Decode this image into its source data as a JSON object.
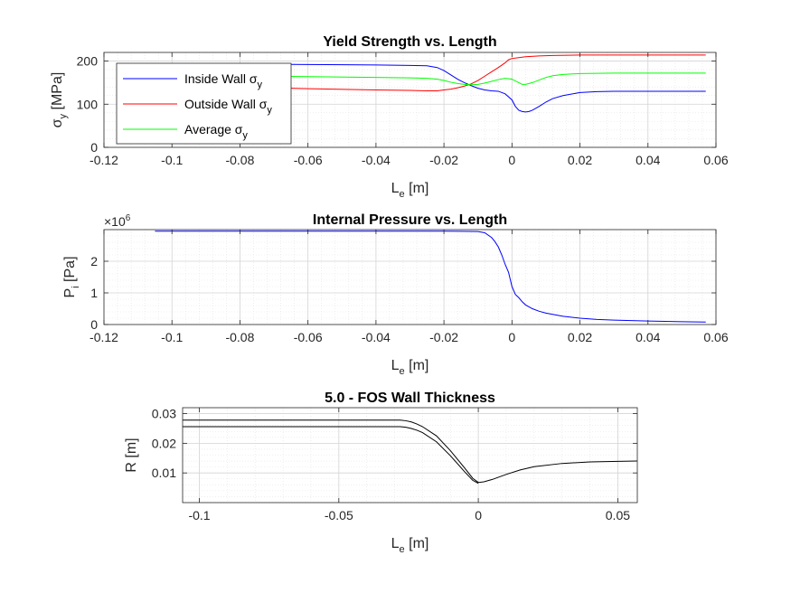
{
  "chart_data": [
    {
      "type": "line",
      "title": "Yield Strength vs. Length",
      "xlabel": {
        "base": "L",
        "sub": "e",
        "rest": " [m]"
      },
      "ylabel": {
        "pre": "σ",
        "sub": "y",
        "rest": " [MPa]"
      },
      "xlim": [
        -0.12,
        0.06
      ],
      "ylim": [
        0,
        220
      ],
      "xticks": [
        -0.12,
        -0.1,
        -0.08,
        -0.06,
        -0.04,
        -0.02,
        0,
        0.02,
        0.04,
        0.06
      ],
      "xtick_labels": [
        "-0.12",
        "-0.1",
        "-0.08",
        "-0.06",
        "-0.04",
        "-0.02",
        "0",
        "0.02",
        "0.04",
        "0.06"
      ],
      "yticks": [
        0,
        100,
        200
      ],
      "ytick_labels": [
        "0",
        "100",
        "200"
      ],
      "grid": true,
      "minor_grid": true,
      "legend": "top-left",
      "series": [
        {
          "name": "Inside Wall σy",
          "legend_text": "Inside Wall ",
          "legend_sym": "σ",
          "legend_sub": "y",
          "color": "#0000ff",
          "x": [
            -0.105,
            -0.08,
            -0.06,
            -0.04,
            -0.03,
            -0.025,
            -0.022,
            -0.02,
            -0.018,
            -0.016,
            -0.014,
            -0.012,
            -0.01,
            -0.008,
            -0.006,
            -0.004,
            -0.002,
            0,
            0.001,
            0.002,
            0.003,
            0.004,
            0.005,
            0.006,
            0.008,
            0.01,
            0.012,
            0.015,
            0.02,
            0.025,
            0.03,
            0.04,
            0.05,
            0.057
          ],
          "y": [
            193,
            193,
            192,
            191,
            190,
            189,
            185,
            178,
            168,
            158,
            150,
            143,
            137,
            133,
            131,
            130,
            124,
            110,
            95,
            86,
            83,
            82,
            83,
            86,
            95,
            105,
            113,
            120,
            127,
            129,
            130,
            130,
            130,
            130
          ]
        },
        {
          "name": "Outside Wall σy",
          "legend_text": "Outside Wall ",
          "legend_sym": "σ",
          "legend_sub": "y",
          "color": "#ff0000",
          "x": [
            -0.105,
            -0.08,
            -0.06,
            -0.04,
            -0.03,
            -0.025,
            -0.022,
            -0.02,
            -0.018,
            -0.016,
            -0.014,
            -0.012,
            -0.01,
            -0.008,
            -0.006,
            -0.004,
            -0.002,
            -0.001,
            0,
            0.002,
            0.004,
            0.008,
            0.012,
            0.02,
            0.03,
            0.04,
            0.05,
            0.057
          ],
          "y": [
            143,
            140,
            136,
            133,
            132,
            131,
            131,
            133,
            135,
            138,
            142,
            147,
            155,
            165,
            175,
            185,
            196,
            203,
            206,
            208,
            210,
            212,
            213,
            214,
            214,
            214,
            214,
            214
          ]
        },
        {
          "name": "Average σy",
          "legend_text": "Average ",
          "legend_sym": "σ",
          "legend_sub": "y",
          "color": "#00ff00",
          "x": [
            -0.105,
            -0.08,
            -0.06,
            -0.04,
            -0.03,
            -0.025,
            -0.022,
            -0.02,
            -0.018,
            -0.016,
            -0.014,
            -0.012,
            -0.01,
            -0.008,
            -0.006,
            -0.004,
            -0.002,
            0,
            0.002,
            0.003,
            0.004,
            0.006,
            0.008,
            0.01,
            0.012,
            0.015,
            0.02,
            0.03,
            0.04,
            0.05,
            0.057
          ],
          "y": [
            168,
            166,
            164,
            162,
            161,
            160,
            158,
            155,
            151,
            148,
            146,
            145,
            146,
            149,
            153,
            157,
            160,
            158,
            150,
            146,
            146,
            150,
            156,
            162,
            166,
            169,
            171,
            172,
            172,
            172,
            172
          ]
        }
      ]
    },
    {
      "type": "line",
      "title": "Internal Pressure vs. Length",
      "xlabel": {
        "base": "L",
        "sub": "e",
        "rest": " [m]"
      },
      "ylabel": {
        "pre": "P",
        "sub": "i",
        "rest": " [Pa]"
      },
      "exponent": {
        "base": "×10",
        "sup": "6"
      },
      "xlim": [
        -0.12,
        0.06
      ],
      "ylim": [
        0,
        3000000
      ],
      "xticks": [
        -0.12,
        -0.1,
        -0.08,
        -0.06,
        -0.04,
        -0.02,
        0,
        0.02,
        0.04,
        0.06
      ],
      "xtick_labels": [
        "-0.12",
        "-0.1",
        "-0.08",
        "-0.06",
        "-0.04",
        "-0.02",
        "0",
        "0.02",
        "0.04",
        "0.06"
      ],
      "yticks": [
        0,
        1000000,
        2000000
      ],
      "ytick_labels": [
        "0",
        "1",
        "2"
      ],
      "grid": true,
      "minor_grid": true,
      "series": [
        {
          "color": "#0000ff",
          "x": [
            -0.105,
            -0.08,
            -0.06,
            -0.04,
            -0.02,
            -0.01,
            -0.008,
            -0.006,
            -0.005,
            -0.004,
            -0.003,
            -0.002,
            -0.001,
            0,
            0.001,
            0.002,
            0.003,
            0.004,
            0.006,
            0.008,
            0.01,
            0.015,
            0.02,
            0.025,
            0.03,
            0.04,
            0.05,
            0.057
          ],
          "y": [
            2950000,
            2950000,
            2950000,
            2950000,
            2950000,
            2940000,
            2900000,
            2750000,
            2620000,
            2450000,
            2200000,
            1900000,
            1650000,
            1200000,
            950000,
            850000,
            720000,
            620000,
            500000,
            420000,
            360000,
            260000,
            200000,
            160000,
            140000,
            110000,
            90000,
            80000
          ]
        }
      ]
    },
    {
      "type": "line",
      "title": "5.0 - FOS Wall Thickness",
      "xlabel": {
        "base": "L",
        "sub": "e",
        "rest": " [m]"
      },
      "ylabel": {
        "pre": "R",
        "sub": "",
        "rest": " [m]"
      },
      "xlim": [
        -0.106,
        0.057
      ],
      "ylim": [
        0,
        0.032
      ],
      "xticks": [
        -0.1,
        -0.05,
        0,
        0.05
      ],
      "xtick_labels": [
        "-0.1",
        "-0.05",
        "0",
        "0.05"
      ],
      "yticks": [
        0.01,
        0.02,
        0.03
      ],
      "ytick_labels": [
        "0.01",
        "0.02",
        "0.03"
      ],
      "grid": true,
      "minor_grid": true,
      "series": [
        {
          "color": "#000000",
          "x": [
            -0.106,
            -0.08,
            -0.06,
            -0.04,
            -0.028,
            -0.026,
            -0.024,
            -0.022,
            -0.02,
            -0.015,
            -0.01,
            -0.005,
            -0.002,
            0,
            0.002,
            0.005,
            0.01,
            0.015,
            0.02,
            0.03,
            0.04,
            0.05,
            0.057
          ],
          "y": [
            0.0278,
            0.0278,
            0.0278,
            0.0278,
            0.0278,
            0.0276,
            0.0272,
            0.0265,
            0.0256,
            0.0225,
            0.0175,
            0.0118,
            0.0082,
            0.0068,
            0.007,
            0.0078,
            0.0095,
            0.011,
            0.0121,
            0.0132,
            0.0137,
            0.0139,
            0.014
          ]
        },
        {
          "color": "#000000",
          "x": [
            -0.106,
            -0.08,
            -0.06,
            -0.04,
            -0.028,
            -0.026,
            -0.024,
            -0.022,
            -0.02,
            -0.015,
            -0.01,
            -0.005,
            -0.002,
            0
          ],
          "y": [
            0.0256,
            0.0256,
            0.0256,
            0.0256,
            0.0256,
            0.0254,
            0.025,
            0.0244,
            0.0236,
            0.0205,
            0.0158,
            0.0105,
            0.0075,
            0.0065
          ]
        }
      ]
    }
  ]
}
